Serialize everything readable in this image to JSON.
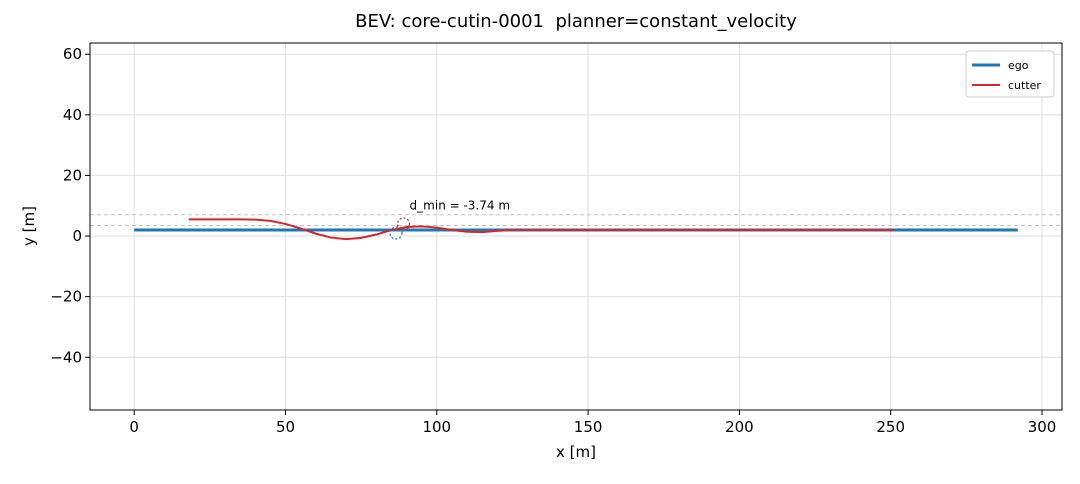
{
  "chart_data": {
    "type": "line",
    "title": "BEV: core-cutin-0001  planner=constant_velocity",
    "x_label": "x [m]",
    "y_label": "y [m]",
    "xlim": [
      -14.6,
      306.6
    ],
    "ylim": [
      -57.4,
      63.7
    ],
    "xticks": [
      0,
      50,
      100,
      150,
      200,
      250,
      300
    ],
    "yticks": [
      {
        "value": -40,
        "label": "−40"
      },
      {
        "value": -20,
        "label": "−20"
      },
      0,
      20,
      40,
      60
    ],
    "grid": true,
    "legend": "upper right",
    "series": [
      {
        "name": "ego",
        "color": "#1f77b4",
        "x": [
          0,
          292
        ],
        "values": [
          2,
          2
        ]
      },
      {
        "name": "cutter",
        "color": "#d62728",
        "x": [
          18,
          25,
          30,
          35,
          40,
          45,
          50,
          55,
          60,
          65,
          70,
          75,
          80,
          85,
          90,
          95,
          100,
          105,
          110,
          115,
          120,
          125,
          130,
          140,
          160,
          200,
          251
        ],
        "values": [
          5.5,
          5.5,
          5.5,
          5.5,
          5.4,
          5.0,
          4.0,
          2.5,
          0.8,
          -0.5,
          -1,
          -0.6,
          0.5,
          2,
          3,
          3.2,
          2.8,
          2,
          1.4,
          1.3,
          1.7,
          2.0,
          2.0,
          2.0,
          2.0,
          2.0,
          2.0
        ]
      }
    ],
    "reference_lines": [
      7,
      3.5
    ],
    "closest_points": {
      "x": [
        86.5,
        89
      ],
      "y": [
        1,
        4
      ]
    },
    "annotation": {
      "text": "d_min = -3.74 m",
      "x": 91,
      "y": 7.5
    }
  }
}
